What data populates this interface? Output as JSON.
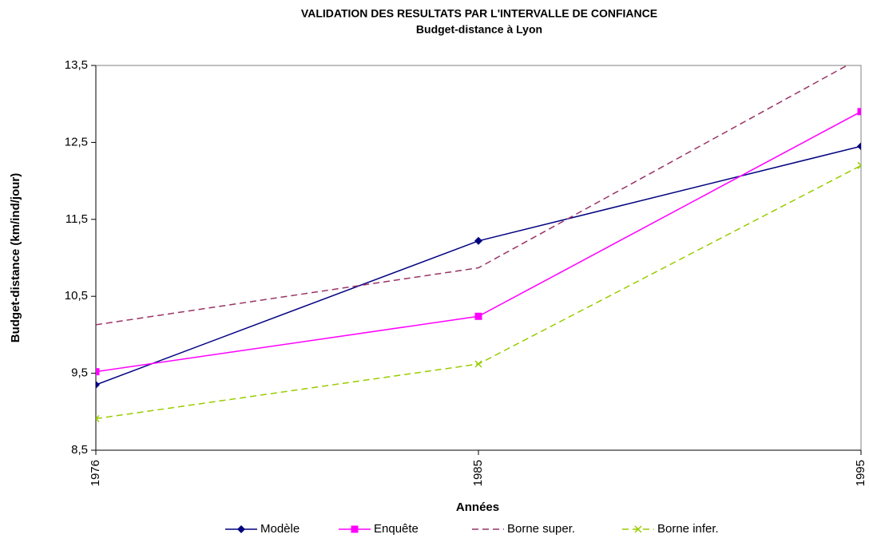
{
  "chart_data": {
    "type": "line",
    "title": "VALIDATION DES RESULTATS PAR L'INTERVALLE DE CONFIANCE",
    "subtitle": "Budget-distance à Lyon",
    "x_label": "Années",
    "y_label": "Budget-distance (km/ind/jour)",
    "categories": [
      "1976",
      "1985",
      "1995"
    ],
    "series": [
      {
        "name": "Modèle",
        "color": "#000080",
        "marker": "diamond",
        "dashed": false,
        "values": [
          9.35,
          11.22,
          12.45
        ]
      },
      {
        "name": "Enquête",
        "color": "#ff00ff",
        "marker": "square",
        "dashed": false,
        "values": [
          9.52,
          10.24,
          12.9
        ]
      },
      {
        "name": "Borne super.",
        "color": "#993366",
        "marker": "none",
        "dashed": true,
        "values": [
          10.13,
          10.87,
          13.6
        ]
      },
      {
        "name": "Borne infer.",
        "color": "#99cc00",
        "marker": "x",
        "dashed": true,
        "values": [
          8.91,
          9.62,
          12.2
        ]
      }
    ],
    "ylim": [
      8.5,
      13.5
    ],
    "yticks": [
      {
        "value": 8.5,
        "label": "8,5"
      },
      {
        "value": 9.5,
        "label": "9,5"
      },
      {
        "value": 10.5,
        "label": "10,5"
      },
      {
        "value": 11.5,
        "label": "11,5"
      },
      {
        "value": 12.5,
        "label": "12,5"
      },
      {
        "value": 13.5,
        "label": "13,5"
      }
    ],
    "grid": false,
    "legend": "bottom"
  }
}
